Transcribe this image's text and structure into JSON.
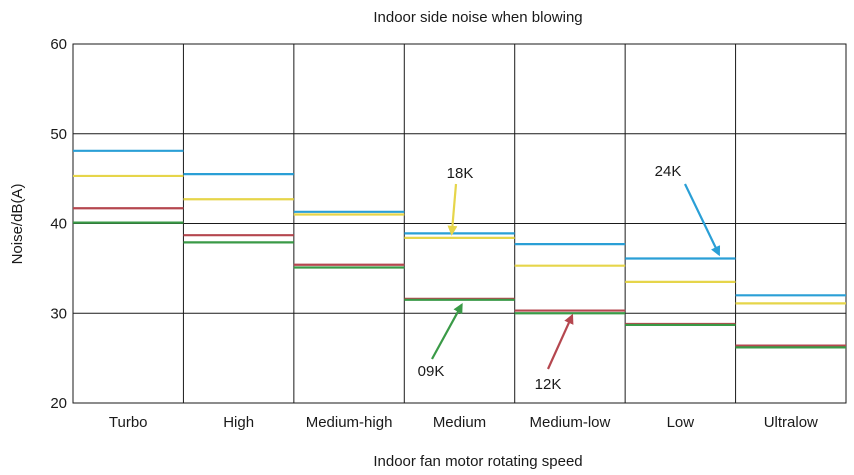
{
  "chart_data": {
    "type": "line",
    "title": "Indoor side noise when blowing",
    "xlabel": "Indoor fan motor rotating speed",
    "ylabel": "Noise/dB(A)",
    "ylim": [
      20,
      60
    ],
    "yticks": [
      20,
      30,
      40,
      50,
      60
    ],
    "grid": true,
    "categories": [
      "Turbo",
      "High",
      "Medium-high",
      "Medium",
      "Medium-low",
      "Low",
      "Ultralow"
    ],
    "series": [
      {
        "name": "24K",
        "color": "#2a9fd6",
        "values": [
          48.1,
          45.5,
          41.3,
          38.9,
          37.7,
          36.1,
          32.0
        ]
      },
      {
        "name": "18K",
        "color": "#e6d54a",
        "values": [
          45.3,
          42.7,
          41.0,
          38.4,
          35.3,
          33.5,
          31.1
        ]
      },
      {
        "name": "12K",
        "color": "#b5474f",
        "values": [
          41.7,
          38.7,
          35.4,
          31.6,
          30.3,
          28.8,
          26.4
        ]
      },
      {
        "name": "09K",
        "color": "#3a9a47",
        "values": [
          40.1,
          37.9,
          35.1,
          31.5,
          30.0,
          28.7,
          26.2
        ]
      }
    ],
    "annotations": [
      {
        "label": "18K",
        "series": "18K",
        "category": "Medium"
      },
      {
        "label": "24K",
        "series": "24K",
        "category": "Low"
      },
      {
        "label": "09K",
        "series": "09K",
        "category": "Medium"
      },
      {
        "label": "12K",
        "series": "12K",
        "category": "Medium-low"
      }
    ]
  }
}
